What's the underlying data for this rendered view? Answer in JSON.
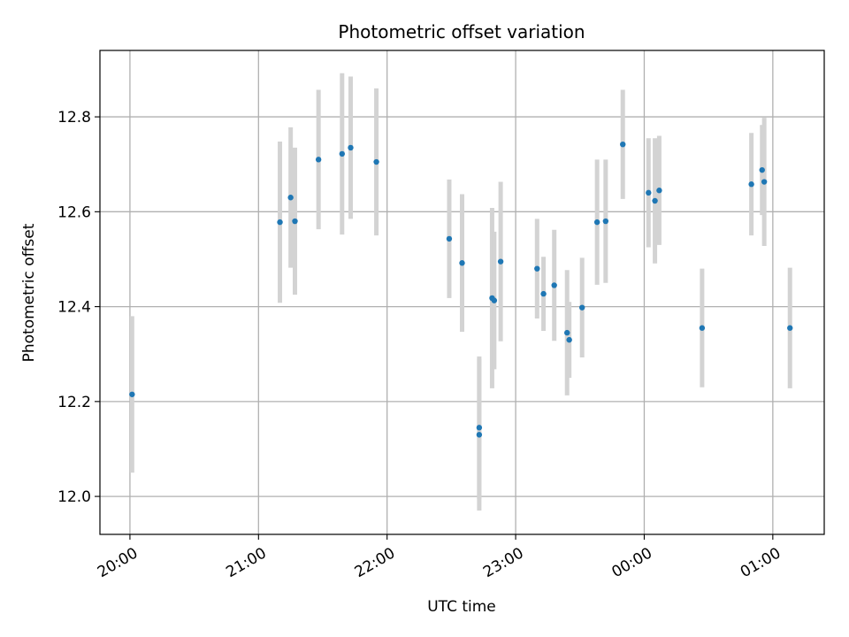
{
  "chart_data": {
    "type": "scatter",
    "title": "Photometric offset variation",
    "xlabel": "UTC time",
    "ylabel": "Photometric offset",
    "x_ticks": [
      "20:00",
      "21:00",
      "22:00",
      "23:00",
      "00:00",
      "01:00"
    ],
    "y_ticks": [
      "12.0",
      "12.2",
      "12.4",
      "12.6",
      "12.8"
    ],
    "xlim": [
      "19:46",
      "01:24"
    ],
    "ylim": [
      11.92,
      12.94
    ],
    "grid": true,
    "colors": {
      "point": "#1f77b4",
      "errorbar": "#d3d3d3",
      "grid": "#b0b0b0"
    },
    "series": [
      {
        "points": [
          {
            "x": "20:01",
            "y": 12.215,
            "yerr": 0.165
          },
          {
            "x": "21:10",
            "y": 12.578,
            "yerr": 0.17
          },
          {
            "x": "21:15",
            "y": 12.63,
            "yerr": 0.148
          },
          {
            "x": "21:17",
            "y": 12.58,
            "yerr": 0.155
          },
          {
            "x": "21:28",
            "y": 12.71,
            "yerr": 0.147
          },
          {
            "x": "21:39",
            "y": 12.722,
            "yerr": 0.17
          },
          {
            "x": "21:43",
            "y": 12.735,
            "yerr": 0.15
          },
          {
            "x": "21:55",
            "y": 12.705,
            "yerr": 0.155
          },
          {
            "x": "22:29",
            "y": 12.543,
            "yerr": 0.125
          },
          {
            "x": "22:35",
            "y": 12.492,
            "yerr": 0.145
          },
          {
            "x": "22:43",
            "y": 12.145,
            "yerr": 0.15
          },
          {
            "x": "22:43",
            "y": 12.13,
            "yerr": 0.16
          },
          {
            "x": "22:49",
            "y": 12.418,
            "yerr": 0.19
          },
          {
            "x": "22:50",
            "y": 12.413,
            "yerr": 0.145
          },
          {
            "x": "22:53",
            "y": 12.495,
            "yerr": 0.168
          },
          {
            "x": "23:10",
            "y": 12.48,
            "yerr": 0.105
          },
          {
            "x": "23:13",
            "y": 12.427,
            "yerr": 0.078
          },
          {
            "x": "23:18",
            "y": 12.445,
            "yerr": 0.117
          },
          {
            "x": "23:24",
            "y": 12.345,
            "yerr": 0.132
          },
          {
            "x": "23:25",
            "y": 12.33,
            "yerr": 0.08
          },
          {
            "x": "23:31",
            "y": 12.398,
            "yerr": 0.105
          },
          {
            "x": "23:38",
            "y": 12.578,
            "yerr": 0.132
          },
          {
            "x": "23:42",
            "y": 12.58,
            "yerr": 0.13
          },
          {
            "x": "23:50",
            "y": 12.742,
            "yerr": 0.115
          },
          {
            "x": "00:02",
            "y": 12.64,
            "yerr": 0.115
          },
          {
            "x": "00:05",
            "y": 12.623,
            "yerr": 0.132
          },
          {
            "x": "00:07",
            "y": 12.645,
            "yerr": 0.115
          },
          {
            "x": "00:27",
            "y": 12.355,
            "yerr": 0.125
          },
          {
            "x": "00:50",
            "y": 12.658,
            "yerr": 0.108
          },
          {
            "x": "00:55",
            "y": 12.688,
            "yerr": 0.095
          },
          {
            "x": "00:56",
            "y": 12.663,
            "yerr": 0.135
          },
          {
            "x": "01:08",
            "y": 12.355,
            "yerr": 0.127
          }
        ]
      }
    ]
  }
}
